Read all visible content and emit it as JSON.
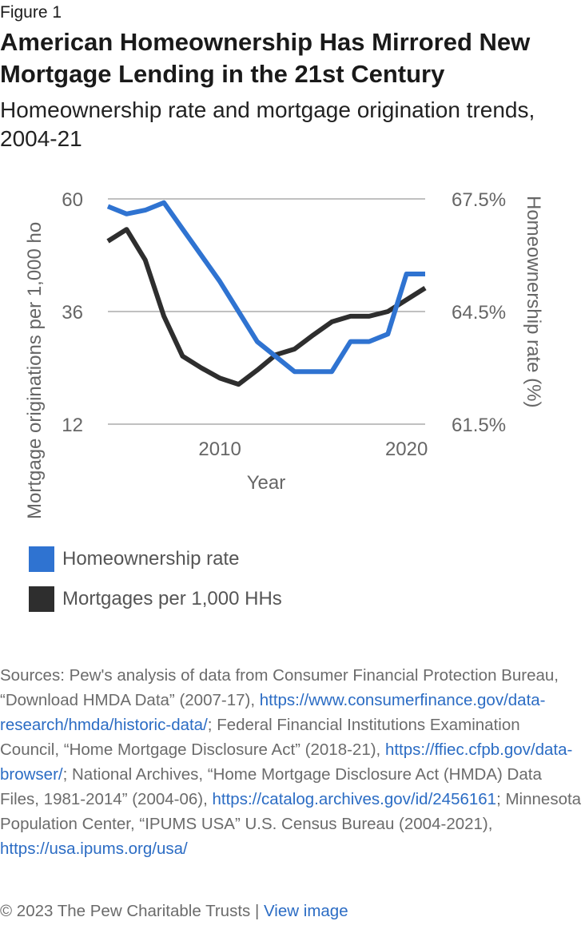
{
  "header": {
    "label": "Figure 1",
    "title": "American Homeownership Has Mirrored New Mortgage Lending in the 21st Century",
    "subtitle": "Homeownership rate and mortgage origination trends, 2004-21"
  },
  "chart_data": {
    "type": "line",
    "xlabel": "Year",
    "ylabel_left": "Mortgage originations per 1,000 ho",
    "ylabel_right": "Homeownership rate (%)",
    "x_ticks": [
      2010,
      2020
    ],
    "xlim": [
      2004,
      2021
    ],
    "y_left": {
      "ticks": [
        "60",
        "36",
        "12"
      ],
      "ylim": [
        12,
        60
      ]
    },
    "y_right": {
      "ticks": [
        "67.5%",
        "64.5%",
        "61.5%"
      ],
      "ylim": [
        61.5,
        67.5
      ]
    },
    "grid": true,
    "colors": {
      "homeownership": "#2f73d1",
      "mortgages": "#2e2e2e"
    },
    "series": [
      {
        "name": "Homeownership rate",
        "axis": "right",
        "x": [
          2004,
          2005,
          2006,
          2007,
          2008,
          2009,
          2010,
          2011,
          2012,
          2013,
          2014,
          2015,
          2016,
          2017,
          2018,
          2019,
          2020,
          2021
        ],
        "values": [
          67.3,
          67.1,
          67.2,
          67.4,
          66.7,
          66.0,
          65.3,
          64.5,
          63.7,
          63.3,
          62.9,
          62.9,
          62.9,
          63.7,
          63.7,
          63.9,
          65.5,
          65.5
        ]
      },
      {
        "name": "Mortgages per 1,000 HHs",
        "axis": "left",
        "x": [
          2004,
          2005,
          2006,
          2007,
          2008,
          2009,
          2010,
          2011,
          2012,
          2013,
          2014,
          2015,
          2016,
          2017,
          2018,
          2019,
          2020,
          2021
        ],
        "values": [
          51,
          53.5,
          47,
          35,
          26.5,
          24,
          21.8,
          20.5,
          23.5,
          26.8,
          28,
          31,
          33.8,
          35,
          35,
          36,
          38.5,
          41
        ]
      }
    ]
  },
  "legend": [
    {
      "label": "Homeownership rate",
      "color": "#2f73d1"
    },
    {
      "label": "Mortgages per 1,000 HHs",
      "color": "#2e2e2e"
    }
  ],
  "sources": {
    "t1": "Sources: Pew's analysis of data from Consumer Financial Protection Bureau, “Download HMDA Data” (2007-17), ",
    "l1": "https://www.consumerfinance.gov/data-research/hmda/historic-data/",
    "t2": "; Federal Financial Institutions Examination Council, “Home Mortgage Disclosure Act” (2018-21), ",
    "l2": "https://ffiec.cfpb.gov/data-browser/",
    "t3": "; National Archives, “Home Mortgage Disclosure Act (HMDA) Data Files, 1981-2014” (2004-06), ",
    "l3": "https://catalog.archives.gov/id/2456161",
    "t4": "; Minnesota Population Center, “IPUMS USA” U.S. Census Bureau (2004-2021), ",
    "l4": "https://usa.ipums.org/usa/"
  },
  "footer": {
    "copyright": "© 2023 The Pew Charitable Trusts",
    "separator": " | ",
    "link": "View image"
  }
}
